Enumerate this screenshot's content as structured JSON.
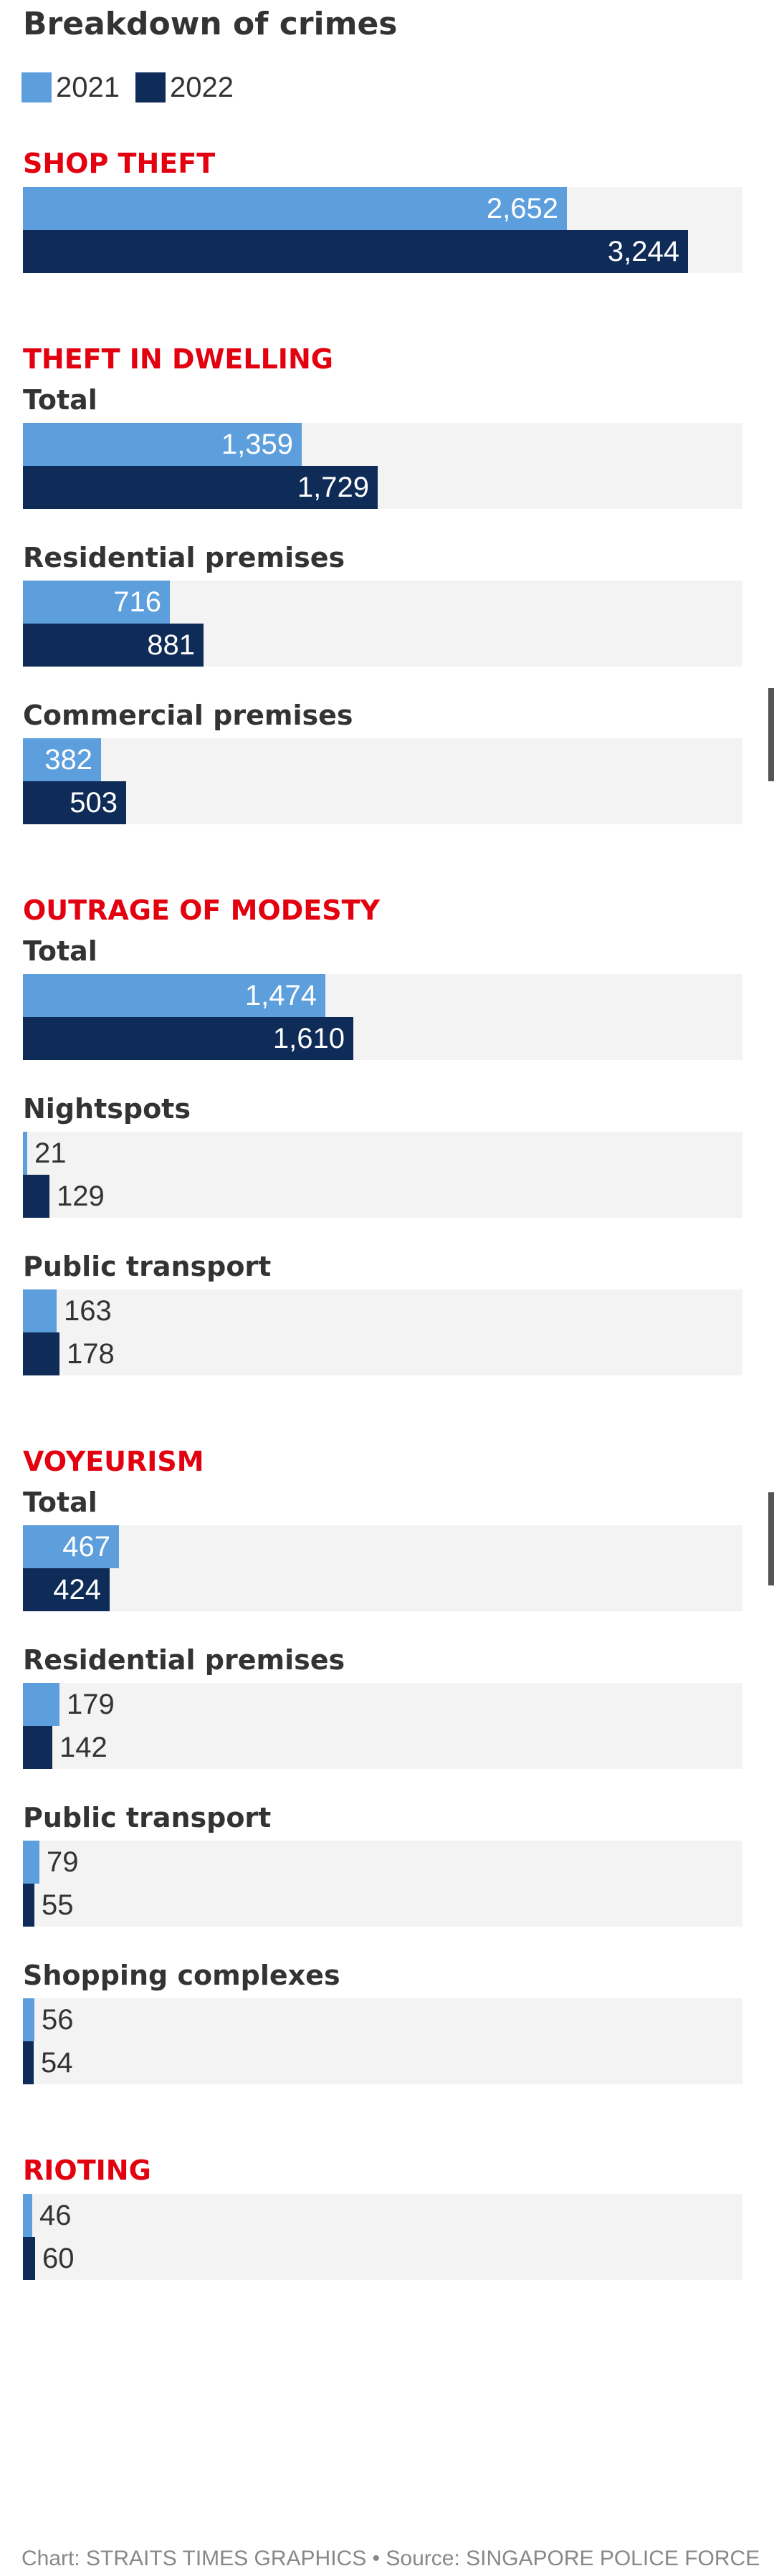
{
  "title": "Breakdown of crimes",
  "colors": {
    "y2021": "#5c9fdc",
    "y2022": "#0f2b57",
    "category": "#e3000f",
    "panel": "#f3f3f3"
  },
  "legend": [
    {
      "label": "2021",
      "color": "#5c9fdc"
    },
    {
      "label": "2022",
      "color": "#0f2b57"
    }
  ],
  "chart_data": {
    "type": "bar",
    "orientation": "horizontal",
    "title": "Breakdown of crimes",
    "series_names": [
      "2021",
      "2022"
    ],
    "xlim": [
      0,
      4000
    ],
    "grid": false,
    "legend_placement": "top-left",
    "groups": [
      {
        "category": "SHOP THEFT",
        "rows": [
          {
            "label": "",
            "values": [
              2652,
              3244
            ],
            "display": [
              "2,652",
              "3,244"
            ]
          }
        ]
      },
      {
        "category": "THEFT IN DWELLING",
        "rows": [
          {
            "label": "Total",
            "values": [
              1359,
              1729
            ],
            "display": [
              "1,359",
              "1,729"
            ]
          },
          {
            "label": "Residential premises",
            "values": [
              716,
              881
            ],
            "display": [
              "716",
              "881"
            ]
          },
          {
            "label": "Commercial premises",
            "values": [
              382,
              503
            ],
            "display": [
              "382",
              "503"
            ]
          }
        ]
      },
      {
        "category": "OUTRAGE OF MODESTY",
        "rows": [
          {
            "label": "Total",
            "values": [
              1474,
              1610
            ],
            "display": [
              "1,474",
              "1,610"
            ]
          },
          {
            "label": "Nightspots",
            "values": [
              21,
              129
            ],
            "display": [
              "21",
              "129"
            ]
          },
          {
            "label": "Public transport",
            "values": [
              163,
              178
            ],
            "display": [
              "163",
              "178"
            ]
          }
        ]
      },
      {
        "category": "VOYEURISM",
        "rows": [
          {
            "label": "Total",
            "values": [
              467,
              424
            ],
            "display": [
              "467",
              "424"
            ]
          },
          {
            "label": "Residential premises",
            "values": [
              179,
              142
            ],
            "display": [
              "179",
              "142"
            ]
          },
          {
            "label": "Public transport",
            "values": [
              79,
              55
            ],
            "display": [
              "79",
              "55"
            ]
          },
          {
            "label": "Shopping complexes",
            "values": [
              56,
              54
            ],
            "display": [
              "56",
              "54"
            ]
          }
        ]
      },
      {
        "category": "RIOTING",
        "rows": [
          {
            "label": "",
            "values": [
              46,
              60
            ],
            "display": [
              "46",
              "60"
            ]
          }
        ]
      }
    ]
  },
  "footer": {
    "chart_credit": "Chart: STRAITS TIMES GRAPHICS",
    "separator": "•",
    "source": "Source: SINGAPORE POLICE FORCE"
  }
}
